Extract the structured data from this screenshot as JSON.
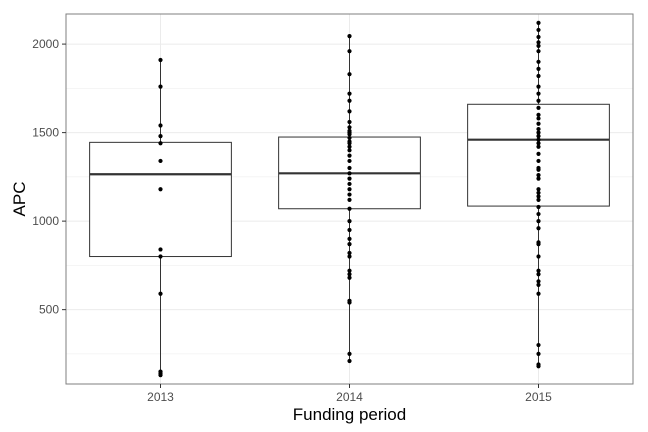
{
  "chart_data": {
    "type": "boxplot",
    "xlabel": "Funding period",
    "ylabel": "APC",
    "categories": [
      "2013",
      "2014",
      "2015"
    ],
    "ylim": [
      80,
      2170
    ],
    "yticks": [
      500,
      1000,
      1500,
      2000
    ],
    "grid": true,
    "legend": "none",
    "boxes": [
      {
        "category": "2013",
        "whisker_low": 130,
        "q1": 800,
        "median": 1265,
        "q3": 1445,
        "whisker_high": 1910
      },
      {
        "category": "2014",
        "whisker_low": 210,
        "q1": 1070,
        "median": 1270,
        "q3": 1475,
        "whisker_high": 2045
      },
      {
        "category": "2015",
        "whisker_low": 180,
        "q1": 1085,
        "median": 1460,
        "q3": 1660,
        "whisker_high": 2120
      }
    ],
    "points": {
      "2013": [
        1910,
        1760,
        1540,
        1480,
        1440,
        1340,
        1180,
        840,
        800,
        590,
        150,
        140,
        130
      ],
      "2014": [
        2045,
        1960,
        1830,
        1720,
        1680,
        1620,
        1560,
        1530,
        1510,
        1500,
        1490,
        1470,
        1450,
        1440,
        1420,
        1400,
        1370,
        1340,
        1300,
        1270,
        1240,
        1210,
        1180,
        1150,
        1120,
        1070,
        1000,
        950,
        900,
        870,
        820,
        800,
        720,
        700,
        680,
        550,
        540,
        250,
        210
      ],
      "2015": [
        2120,
        2080,
        2040,
        2010,
        1990,
        1960,
        1900,
        1860,
        1820,
        1760,
        1720,
        1680,
        1640,
        1600,
        1580,
        1550,
        1520,
        1500,
        1480,
        1460,
        1440,
        1420,
        1380,
        1340,
        1300,
        1290,
        1260,
        1240,
        1180,
        1160,
        1140,
        1120,
        1080,
        1040,
        1000,
        960,
        880,
        870,
        800,
        720,
        700,
        660,
        640,
        590,
        300,
        250,
        190,
        180
      ]
    },
    "colors": {
      "panel_border": "#7f7f7f",
      "grid": "#ebebeb",
      "box_stroke": "#333333",
      "point": "#000000"
    }
  }
}
